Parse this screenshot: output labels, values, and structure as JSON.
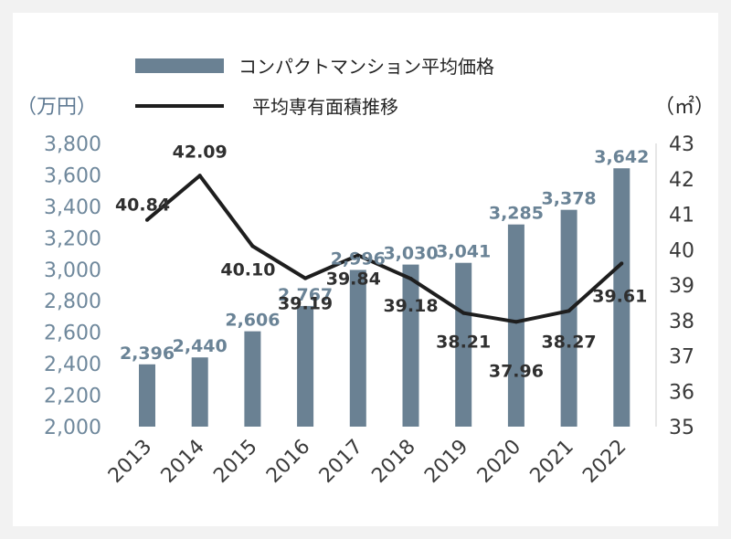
{
  "chart_data": {
    "type": "bar",
    "categories": [
      "2013",
      "2014",
      "2015",
      "2016",
      "2017",
      "2018",
      "2019",
      "2020",
      "2021",
      "2022"
    ],
    "series": [
      {
        "name": "コンパクトマンション平均価格",
        "type": "bar",
        "axis": "left",
        "values": [
          2396,
          2440,
          2606,
          2767,
          2996,
          3030,
          3041,
          3285,
          3378,
          3642
        ],
        "labels": [
          "2,396",
          "2,440",
          "2,606",
          "2,767",
          "2,996",
          "3,030",
          "3,041",
          "3,285",
          "3,378",
          "3,642"
        ]
      },
      {
        "name": "平均専有面積推移",
        "type": "line",
        "axis": "right",
        "values": [
          40.84,
          42.09,
          40.1,
          39.19,
          39.84,
          39.18,
          38.21,
          37.96,
          38.27,
          39.61
        ],
        "labels": [
          "40.84",
          "42.09",
          "40.10",
          "39.19",
          "39.84",
          "39.18",
          "38.21",
          "37.96",
          "38.27",
          "39.61"
        ]
      }
    ],
    "y_left": {
      "unit": "（万円）",
      "ylim": [
        2000,
        3800
      ],
      "ticks": [
        "2,000",
        "2,200",
        "2,400",
        "2,600",
        "2,800",
        "3,000",
        "3,200",
        "3,400",
        "3,600",
        "3,800"
      ]
    },
    "y_right": {
      "unit": "（㎡）",
      "ylim": [
        35,
        43
      ],
      "ticks": [
        "35",
        "36",
        "37",
        "38",
        "39",
        "40",
        "41",
        "42",
        "43"
      ]
    },
    "grid": false,
    "legend_position": "top",
    "colors": {
      "bar": "#6a8193",
      "line": "#1e1e1e"
    }
  }
}
